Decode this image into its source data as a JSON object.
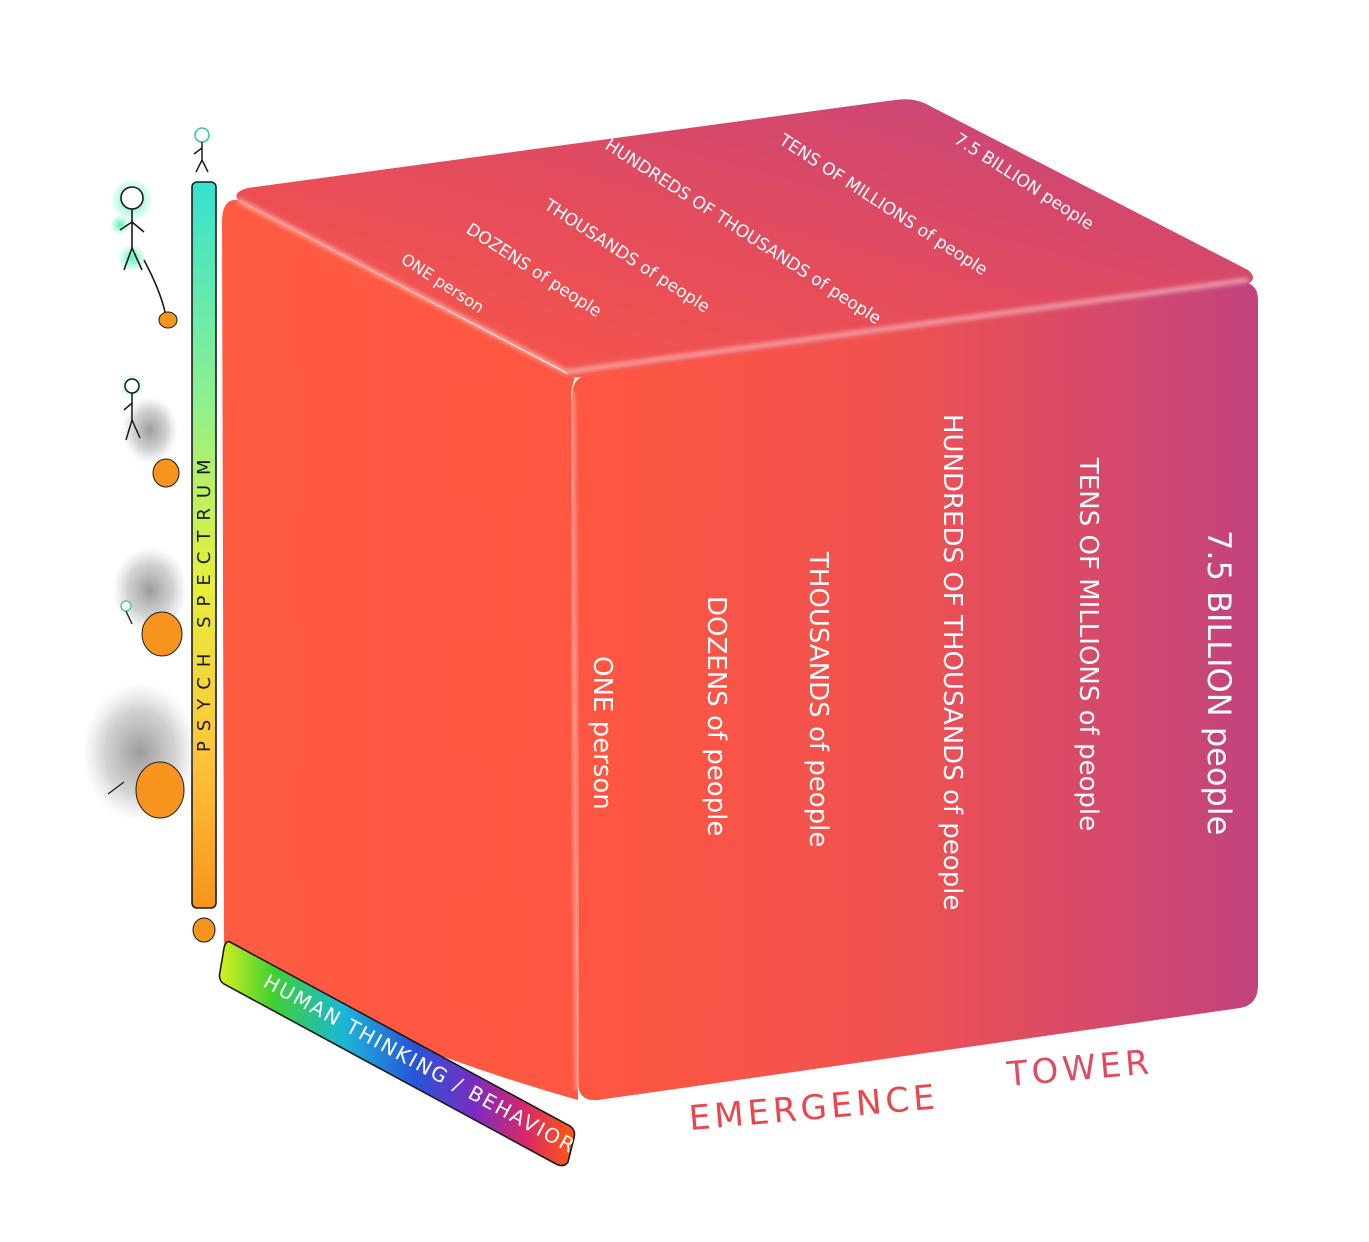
{
  "diagram": {
    "front_face_labels": [
      "ONE person",
      "DOZENS of people",
      "THOUSANDS of people",
      "HUNDREDS OF THOUSANDS of people",
      "TENS OF MILLIONS of people",
      "7.5 BILLION people"
    ],
    "top_face_labels": [
      "ONE person",
      "DOZENS of people",
      "THOUSANDS of people",
      "HUNDREDS OF THOUSANDS of people",
      "TENS OF MILLIONS of people",
      "7.5 BILLION people"
    ],
    "vertical_axis_label": "PSYCH SPECTRUM",
    "horizontal_axis_label": "HUMAN THINKING / BEHAVIOR",
    "cube_caption_word1": "EMERGENCE",
    "cube_caption_word2": "TOWER",
    "colors": {
      "front_left": "#ff5540",
      "front_right": "#c2437e",
      "caption": "#e8474f",
      "creature": "#f7941d",
      "spectrum_top": "#35e2d0",
      "spectrum_bottom": "#f7941d"
    }
  }
}
